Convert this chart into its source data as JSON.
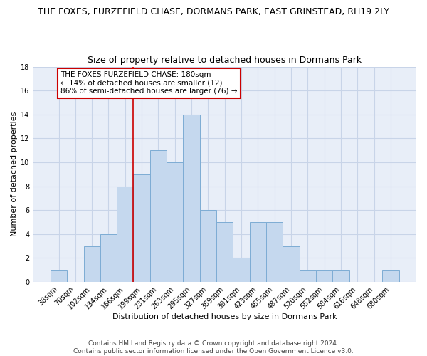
{
  "title": "THE FOXES, FURZEFIELD CHASE, DORMANS PARK, EAST GRINSTEAD, RH19 2LY",
  "subtitle": "Size of property relative to detached houses in Dormans Park",
  "xlabel": "Distribution of detached houses by size in Dormans Park",
  "ylabel": "Number of detached properties",
  "categories": [
    "38sqm",
    "70sqm",
    "102sqm",
    "134sqm",
    "166sqm",
    "199sqm",
    "231sqm",
    "263sqm",
    "295sqm",
    "327sqm",
    "359sqm",
    "391sqm",
    "423sqm",
    "455sqm",
    "487sqm",
    "520sqm",
    "552sqm",
    "584sqm",
    "616sqm",
    "648sqm",
    "680sqm"
  ],
  "values": [
    1,
    0,
    3,
    4,
    8,
    9,
    11,
    10,
    14,
    6,
    5,
    2,
    5,
    5,
    3,
    1,
    1,
    1,
    0,
    0,
    1
  ],
  "bar_color": "#c5d8ee",
  "bar_edge_color": "#7dacd4",
  "bar_edge_width": 0.7,
  "vline_index": 4.5,
  "vline_color": "#cc0000",
  "annotation_text": "THE FOXES FURZEFIELD CHASE: 180sqm\n← 14% of detached houses are smaller (12)\n86% of semi-detached houses are larger (76) →",
  "annotation_box_facecolor": "#ffffff",
  "annotation_box_edgecolor": "#cc0000",
  "ylim": [
    0,
    18
  ],
  "yticks": [
    0,
    2,
    4,
    6,
    8,
    10,
    12,
    14,
    16,
    18
  ],
  "footer": "Contains HM Land Registry data © Crown copyright and database right 2024.\nContains public sector information licensed under the Open Government Licence v3.0.",
  "grid_color": "#c8d4e8",
  "background_color": "#e8eef8",
  "title_fontsize": 9,
  "subtitle_fontsize": 9,
  "axis_label_fontsize": 8,
  "tick_fontsize": 7,
  "annotation_fontsize": 7.5,
  "footer_fontsize": 6.5
}
